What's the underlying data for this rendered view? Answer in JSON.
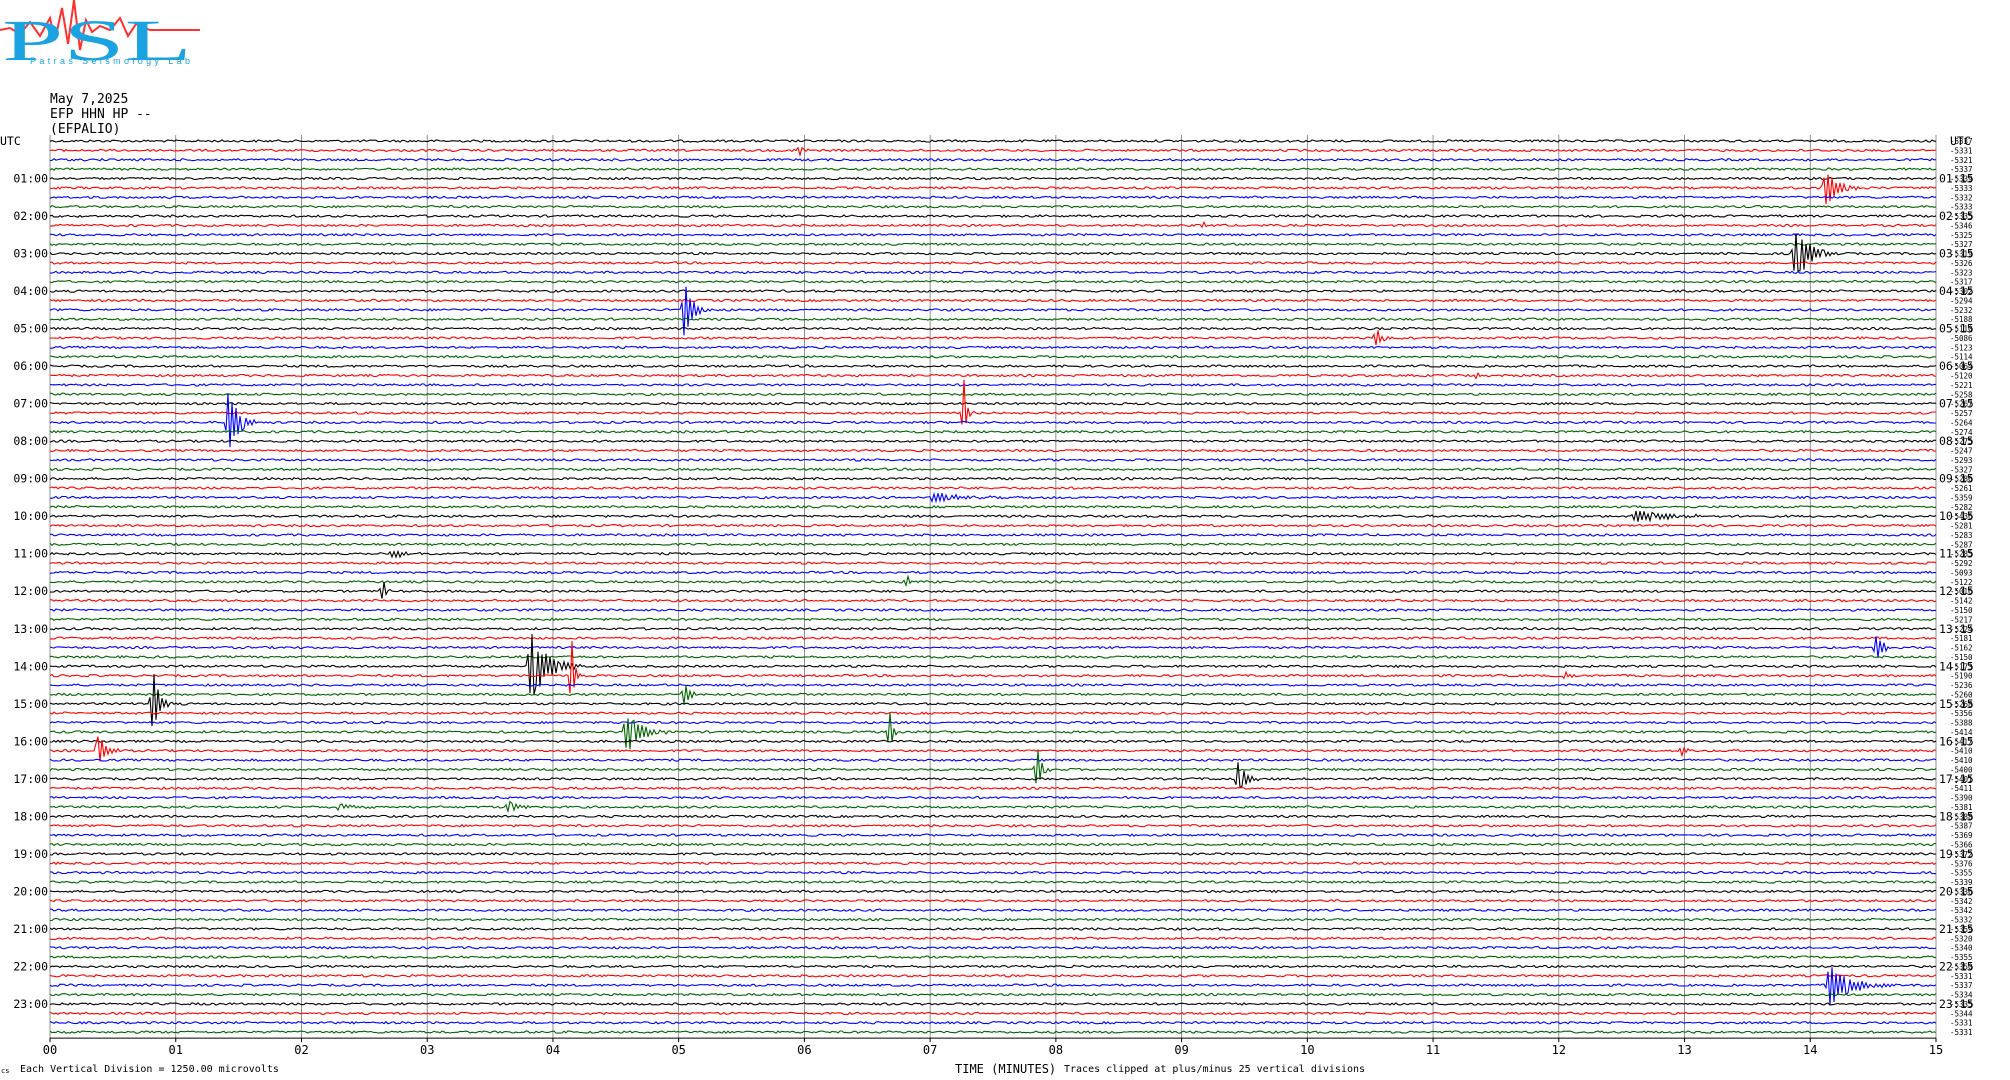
{
  "header": {
    "logo_text": "PSL",
    "logo_subtext": "Patras Seismology Lab",
    "date": "May 7,2025",
    "station": "EFP HHN HP --",
    "station_name": "(EFPALIO)"
  },
  "footer": {
    "mark": "cs",
    "scale_note": "Each Vertical Division = 1250.00 microvolts",
    "clip_note": "Traces clipped at plus/minus 25 vertical divisions"
  },
  "chart_data": {
    "type": "line",
    "title": "",
    "xlabel": "TIME (MINUTES)",
    "left_axis_header": "UTC",
    "right_axis_header": "UTC",
    "xlim": [
      0,
      15
    ],
    "x_ticks": [
      "00",
      "01",
      "02",
      "03",
      "04",
      "05",
      "06",
      "07",
      "08",
      "09",
      "10",
      "11",
      "12",
      "13",
      "14",
      "15"
    ],
    "trace_count": 96,
    "trace_colors_cycle": [
      "#000000",
      "#ff0000",
      "#0000ff",
      "#006400"
    ],
    "left_labels": [
      "01:00",
      "02:00",
      "03:00",
      "04:00",
      "05:00",
      "06:00",
      "07:00",
      "08:00",
      "09:00",
      "10:00",
      "11:00",
      "12:00",
      "13:00",
      "14:00",
      "15:00",
      "16:00",
      "17:00",
      "18:00",
      "19:00",
      "20:00",
      "21:00",
      "22:00",
      "23:00"
    ],
    "right_labels": [
      "01:15",
      "02:15",
      "03:15",
      "04:15",
      "05:15",
      "06:15",
      "07:15",
      "08:15",
      "09:15",
      "10:15",
      "11:15",
      "12:15",
      "13:15",
      "14:15",
      "15:15",
      "16:15",
      "17:15",
      "18:15",
      "19:15",
      "20:15",
      "21:15",
      "22:15",
      "23:15"
    ],
    "trace_offsets": [
      "-5337",
      "-5331",
      "-5321",
      "-5337",
      "-5339",
      "-5333",
      "-5332",
      "-5333",
      "-5335",
      "-5346",
      "-5325",
      "-5327",
      "-5319",
      "-5326",
      "-5323",
      "-5317",
      "-5302",
      "-5294",
      "-5232",
      "-5188",
      "-5110",
      "-5086",
      "-5123",
      "-5114",
      "-5064",
      "-5120",
      "-5221",
      "-5258",
      "-5267",
      "-5257",
      "-5264",
      "-5274",
      "-5275",
      "-5247",
      "-5293",
      "-5327",
      "-5286",
      "-5261",
      "-5359",
      "-5282",
      "-5436",
      "-5281",
      "-5283",
      "-5287",
      "-5285",
      "-5292",
      "-5093",
      "-5122",
      "-5016",
      "-5142",
      "-5150",
      "-5217",
      "-5224",
      "-5181",
      "-5162",
      "-5150",
      "-5173",
      "-5190",
      "-5236",
      "-5260",
      "-5268",
      "-5356",
      "-5388",
      "-5414",
      "-5417",
      "-5410",
      "-5410",
      "-5400",
      "-5401",
      "-5411",
      "-5390",
      "-5381",
      "-5388",
      "-5387",
      "-5369",
      "-5366",
      "-5372",
      "-5376",
      "-5355",
      "-5339",
      "-5336",
      "-5342",
      "-5342",
      "-5332",
      "-5359",
      "-5320",
      "-5340",
      "-5355",
      "-5350",
      "-5331",
      "-5337",
      "-5334",
      "-5335",
      "-5344",
      "-5331",
      "-5331"
    ],
    "events": [
      {
        "trace": 1,
        "minute": 5.97,
        "amplitude": 8,
        "duration": 0.05
      },
      {
        "trace": 5,
        "minute": 14.12,
        "amplitude": 22,
        "duration": 0.25
      },
      {
        "trace": 9,
        "minute": 9.18,
        "amplitude": 4,
        "duration": 0.08
      },
      {
        "trace": 12,
        "minute": 13.88,
        "amplitude": 30,
        "duration": 0.3
      },
      {
        "trace": 18,
        "minute": 5.05,
        "amplitude": 36,
        "duration": 0.15
      },
      {
        "trace": 21,
        "minute": 10.55,
        "amplitude": 14,
        "duration": 0.1
      },
      {
        "trace": 25,
        "minute": 11.35,
        "amplitude": 5,
        "duration": 0.05
      },
      {
        "trace": 29,
        "minute": 7.27,
        "amplitude": 38,
        "duration": 0.05
      },
      {
        "trace": 30,
        "minute": 1.42,
        "amplitude": 38,
        "duration": 0.2
      },
      {
        "trace": 38,
        "minute": 7.02,
        "amplitude": 6,
        "duration": 0.6
      },
      {
        "trace": 40,
        "minute": 12.6,
        "amplitude": 7,
        "duration": 0.7
      },
      {
        "trace": 44,
        "minute": 2.72,
        "amplitude": 6,
        "duration": 0.2
      },
      {
        "trace": 47,
        "minute": 6.82,
        "amplitude": 8,
        "duration": 0.05
      },
      {
        "trace": 48,
        "minute": 2.65,
        "amplitude": 14,
        "duration": 0.05
      },
      {
        "trace": 54,
        "minute": 14.53,
        "amplitude": 18,
        "duration": 0.12
      },
      {
        "trace": 56,
        "minute": 3.82,
        "amplitude": 40,
        "duration": 0.35
      },
      {
        "trace": 57,
        "minute": 4.15,
        "amplitude": 40,
        "duration": 0.05
      },
      {
        "trace": 57,
        "minute": 12.05,
        "amplitude": 4,
        "duration": 0.15
      },
      {
        "trace": 59,
        "minute": 5.05,
        "amplitude": 14,
        "duration": 0.1
      },
      {
        "trace": 60,
        "minute": 0.82,
        "amplitude": 40,
        "duration": 0.12
      },
      {
        "trace": 63,
        "minute": 4.58,
        "amplitude": 24,
        "duration": 0.3
      },
      {
        "trace": 63,
        "minute": 6.68,
        "amplitude": 24,
        "duration": 0.05
      },
      {
        "trace": 65,
        "minute": 0.38,
        "amplitude": 22,
        "duration": 0.15
      },
      {
        "trace": 65,
        "minute": 12.98,
        "amplitude": 7,
        "duration": 0.08
      },
      {
        "trace": 67,
        "minute": 7.85,
        "amplitude": 24,
        "duration": 0.1
      },
      {
        "trace": 68,
        "minute": 9.45,
        "amplitude": 20,
        "duration": 0.15
      },
      {
        "trace": 71,
        "minute": 2.3,
        "amplitude": 4,
        "duration": 0.3
      },
      {
        "trace": 71,
        "minute": 3.65,
        "amplitude": 7,
        "duration": 0.2
      },
      {
        "trace": 90,
        "minute": 14.15,
        "amplitude": 22,
        "duration": 0.45
      }
    ]
  }
}
